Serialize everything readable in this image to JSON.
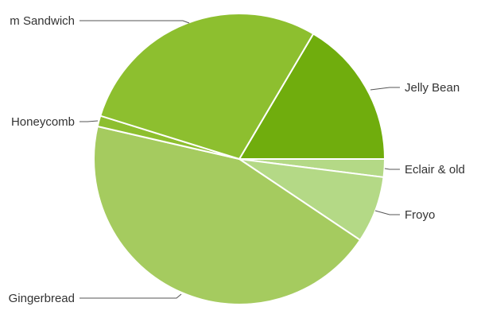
{
  "chart_data": {
    "type": "pie",
    "categories": [
      "Jelly Bean",
      "Eclair & older",
      "Froyo",
      "Gingerbread",
      "Honeycomb",
      "Ice Cream Sandwich"
    ],
    "values": [
      16.5,
      2.0,
      7.4,
      44.2,
      1.2,
      28.7
    ],
    "colors": [
      "#70ad0d",
      "#b4d986",
      "#b4d986",
      "#a5cb5f",
      "#8dbf2f",
      "#8dbf2f"
    ],
    "labels": [
      "Jelly Bean",
      "Eclair & old",
      "Froyo",
      "Gingerbread",
      "Honeycomb",
      "m Sandwich"
    ]
  }
}
